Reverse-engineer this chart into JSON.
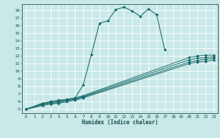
{
  "title": "",
  "xlabel": "Humidex (Indice chaleur)",
  "bg_color": "#c9e8e8",
  "grid_color": "#ffffff",
  "line_color": "#1a6b6b",
  "xlim": [
    -0.5,
    23.5
  ],
  "ylim": [
    4.5,
    18.8
  ],
  "xticks": [
    0,
    1,
    2,
    3,
    4,
    5,
    6,
    7,
    8,
    9,
    10,
    11,
    12,
    13,
    14,
    15,
    16,
    17,
    18,
    19,
    20,
    21,
    22,
    23
  ],
  "yticks": [
    5,
    6,
    7,
    8,
    9,
    10,
    11,
    12,
    13,
    14,
    15,
    16,
    17,
    18
  ],
  "main_x": [
    0,
    2,
    3,
    4,
    5,
    6,
    7,
    8,
    9,
    10,
    11,
    12,
    13,
    14,
    15,
    16,
    17
  ],
  "main_y": [
    5,
    5.8,
    6.0,
    6.2,
    6.3,
    6.5,
    8.2,
    12.2,
    16.3,
    16.6,
    18.1,
    18.4,
    17.9,
    17.2,
    18.2,
    17.4,
    12.8
  ],
  "ref1_x": [
    0,
    2,
    3,
    4,
    5,
    6,
    7,
    20,
    21,
    22,
    23
  ],
  "ref1_y": [
    5,
    5.8,
    6.0,
    6.1,
    6.3,
    6.5,
    6.8,
    11.8,
    12.0,
    12.1,
    12.1
  ],
  "ref2_x": [
    0,
    2,
    3,
    4,
    5,
    6,
    7,
    20,
    21,
    22,
    23
  ],
  "ref2_y": [
    5,
    5.7,
    5.9,
    6.0,
    6.2,
    6.4,
    6.7,
    11.5,
    11.7,
    11.8,
    11.9
  ],
  "ref3_x": [
    0,
    2,
    3,
    4,
    5,
    6,
    7,
    20,
    21,
    22,
    23
  ],
  "ref3_y": [
    5,
    5.6,
    5.8,
    5.9,
    6.1,
    6.3,
    6.6,
    11.2,
    11.4,
    11.6,
    11.7
  ],
  "ref4_x": [
    0,
    2,
    3,
    4,
    5,
    6,
    7,
    20,
    21,
    22,
    23
  ],
  "ref4_y": [
    5,
    5.5,
    5.7,
    5.8,
    6.0,
    6.2,
    6.5,
    11.0,
    11.2,
    11.3,
    11.5
  ]
}
